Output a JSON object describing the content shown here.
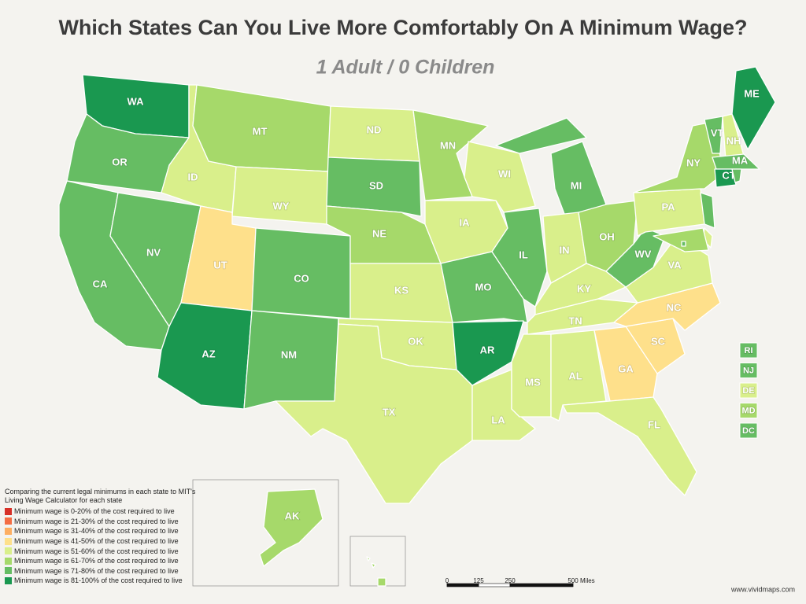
{
  "header": {
    "title": "Which States Can You Live More Comfortably On A Minimum Wage?",
    "subtitle": "1 Adult / 0 Children"
  },
  "states": [
    {
      "abbr": "WA",
      "color": "#1a9850"
    },
    {
      "abbr": "OR",
      "color": "#66bd63"
    },
    {
      "abbr": "CA",
      "color": "#66bd63"
    },
    {
      "abbr": "NV",
      "color": "#66bd63"
    },
    {
      "abbr": "ID",
      "color": "#d9ef8b"
    },
    {
      "abbr": "MT",
      "color": "#a6d96a"
    },
    {
      "abbr": "WY",
      "color": "#d9ef8b"
    },
    {
      "abbr": "UT",
      "color": "#fee08b"
    },
    {
      "abbr": "AZ",
      "color": "#1a9850"
    },
    {
      "abbr": "CO",
      "color": "#66bd63"
    },
    {
      "abbr": "NM",
      "color": "#66bd63"
    },
    {
      "abbr": "ND",
      "color": "#d9ef8b"
    },
    {
      "abbr": "SD",
      "color": "#66bd63"
    },
    {
      "abbr": "NE",
      "color": "#a6d96a"
    },
    {
      "abbr": "KS",
      "color": "#d9ef8b"
    },
    {
      "abbr": "OK",
      "color": "#d9ef8b"
    },
    {
      "abbr": "TX",
      "color": "#d9ef8b"
    },
    {
      "abbr": "MN",
      "color": "#a6d96a"
    },
    {
      "abbr": "IA",
      "color": "#d9ef8b"
    },
    {
      "abbr": "MO",
      "color": "#66bd63"
    },
    {
      "abbr": "AR",
      "color": "#1a9850"
    },
    {
      "abbr": "LA",
      "color": "#d9ef8b"
    },
    {
      "abbr": "WI",
      "color": "#d9ef8b"
    },
    {
      "abbr": "IL",
      "color": "#66bd63"
    },
    {
      "abbr": "MI",
      "color": "#66bd63"
    },
    {
      "abbr": "IN",
      "color": "#d9ef8b"
    },
    {
      "abbr": "OH",
      "color": "#a6d96a"
    },
    {
      "abbr": "KY",
      "color": "#d9ef8b"
    },
    {
      "abbr": "TN",
      "color": "#d9ef8b"
    },
    {
      "abbr": "MS",
      "color": "#d9ef8b"
    },
    {
      "abbr": "AL",
      "color": "#d9ef8b"
    },
    {
      "abbr": "GA",
      "color": "#fee08b"
    },
    {
      "abbr": "FL",
      "color": "#d9ef8b"
    },
    {
      "abbr": "SC",
      "color": "#fee08b"
    },
    {
      "abbr": "NC",
      "color": "#fee08b"
    },
    {
      "abbr": "VA",
      "color": "#d9ef8b"
    },
    {
      "abbr": "WV",
      "color": "#66bd63"
    },
    {
      "abbr": "PA",
      "color": "#d9ef8b"
    },
    {
      "abbr": "NY",
      "color": "#a6d96a"
    },
    {
      "abbr": "VT",
      "color": "#66bd63"
    },
    {
      "abbr": "NH",
      "color": "#d9ef8b"
    },
    {
      "abbr": "ME",
      "color": "#1a9850"
    },
    {
      "abbr": "MA",
      "color": "#66bd63"
    },
    {
      "abbr": "CT",
      "color": "#1a9850"
    },
    {
      "abbr": "AK",
      "color": "#a6d96a"
    },
    {
      "color": "#a6d96a"
    }
  ],
  "callouts": [
    {
      "abbr": "RI",
      "color": "#66bd63"
    },
    {
      "abbr": "NJ",
      "color": "#66bd63"
    },
    {
      "abbr": "DE",
      "color": "#d9ef8b"
    },
    {
      "abbr": "MD",
      "color": "#a6d96a"
    },
    {
      "abbr": "DC",
      "color": "#66bd63"
    }
  ],
  "legend": {
    "intro": "Comparing the current legal minimums in each state to MIT's Living Wage Calculator for each state",
    "items": [
      {
        "label": "Minimum wage is 0-20% of the cost required to live",
        "color": "#d73027"
      },
      {
        "label": "Minimum wage is 21-30% of the cost required to live",
        "color": "#f46d43"
      },
      {
        "label": "Minimum wage is 31-40% of the cost required to live",
        "color": "#fdae61"
      },
      {
        "label": "Minimum wage is 41-50% of the cost required to live",
        "color": "#fee08b"
      },
      {
        "label": "Minimum wage is 51-60% of the cost required to live",
        "color": "#d9ef8b"
      },
      {
        "label": "Minimum wage is 61-70% of the cost required to live",
        "color": "#a6d96a"
      },
      {
        "label": "Minimum wage is 71-80% of the cost required to live",
        "color": "#66bd63"
      },
      {
        "label": "Minimum wage is 81-100% of the cost required to live",
        "color": "#1a9850"
      }
    ]
  },
  "scale": {
    "ticks": [
      0,
      125,
      250,
      500
    ],
    "unit": "Miles"
  },
  "credit": "www.vividmaps.com"
}
